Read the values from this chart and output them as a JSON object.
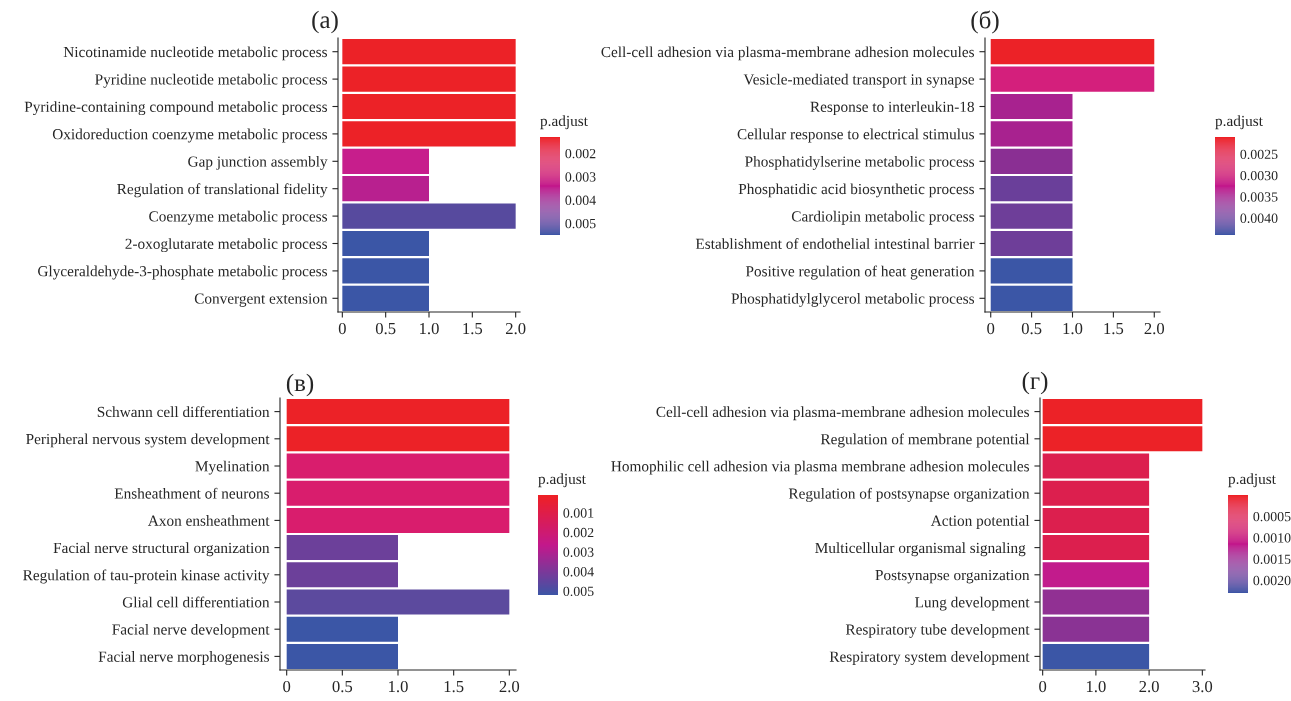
{
  "chart_data": [
    {
      "type": "bar",
      "orientation": "horizontal",
      "title": "(a)",
      "clabel": "p.adjust",
      "categories": [
        "Nicotinamide nucleotide metabolic process",
        "Pyridine nucleotide metabolic process",
        "Pyridine-containing compound metabolic process",
        "Oxidoreduction coenzyme metabolic process",
        "Gap junction assembly",
        "Regulation of translational fidelity",
        "Coenzyme metabolic process",
        "2-oxoglutarate metabolic process",
        "Glyceraldehyde-3-phosphate metabolic process",
        "Convergent extension"
      ],
      "values": [
        2,
        2,
        2,
        2,
        1,
        1,
        2,
        1,
        1,
        1
      ],
      "colors": [
        "#ec2227",
        "#ec2227",
        "#ec2227",
        "#ec2227",
        "#c71e8c",
        "#b8208f",
        "#574a9e",
        "#3b56a6",
        "#3b56a6",
        "#3b56a6"
      ],
      "xlim": [
        -0.05,
        2.05
      ],
      "xticks": [
        0,
        {
          "value": 0.5,
          "label": "0.5"
        },
        {
          "value": 1,
          "label": "1.0"
        },
        {
          "value": 1.5,
          "label": "1.5"
        },
        {
          "value": 2,
          "label": "2.0"
        }
      ],
      "clim": [
        0.0055,
        0.0013
      ],
      "cticks": [
        {
          "value": 0.002,
          "label": "0.002"
        },
        {
          "value": 0.003,
          "label": "0.003"
        },
        {
          "value": 0.004,
          "label": "0.004"
        },
        {
          "value": 0.005,
          "label": "0.005"
        }
      ],
      "grid": false,
      "legend": false
    },
    {
      "type": "bar",
      "orientation": "horizontal",
      "title": "(б)",
      "clabel": "p.adjust",
      "categories": [
        "Cell-cell adhesion via plasma-membrane adhesion molecules",
        "Vesicle-mediated transport in synapse",
        "Response to interleukin-18",
        "Cellular response to electrical stimulus",
        "Phosphatidylserine metabolic process",
        "Phosphatidic acid biosynthetic process",
        "Cardiolipin metabolic process",
        "Establishment of endothelial intestinal barrier",
        "Positive regulation of heat generation",
        "Phosphatidylglycerol metabolic process"
      ],
      "values": [
        2,
        2,
        1,
        1,
        1,
        1,
        1,
        1,
        1,
        1
      ],
      "colors": [
        "#ec2227",
        "#d41f7c",
        "#a8228f",
        "#a8228f",
        "#8a2f93",
        "#6a3f9a",
        "#6e3e99",
        "#6e3e99",
        "#3b56a6",
        "#3b56a6"
      ],
      "xlim": [
        -0.07,
        2.07
      ],
      "xticks": [
        0,
        {
          "value": 0.5,
          "label": "0.5"
        },
        {
          "value": 1,
          "label": "1.0"
        },
        {
          "value": 1.5,
          "label": "1.5"
        },
        {
          "value": 2,
          "label": "2.0"
        }
      ],
      "clim": [
        0.0044,
        0.0021
      ],
      "cticks": [
        {
          "value": 0.0025,
          "label": "0.0025"
        },
        {
          "value": 0.003,
          "label": "0.0030"
        },
        {
          "value": 0.0035,
          "label": "0.0035"
        },
        {
          "value": 0.004,
          "label": "0.0040"
        }
      ],
      "grid": false,
      "legend": false
    },
    {
      "type": "bar",
      "orientation": "horizontal",
      "title": "(в)",
      "clabel": "p.adjust",
      "categories": [
        "Schwann cell differentiation",
        "Peripheral nervous system development",
        "Myelination",
        "Ensheathment of neurons",
        "Axon ensheathment",
        "Facial nerve structural organization",
        "Regulation of tau-protein kinase activity",
        "Glial cell differentiation",
        "Facial nerve development",
        "Facial nerve morphogenesis"
      ],
      "values": [
        2,
        2,
        2,
        2,
        2,
        1,
        1,
        2,
        1,
        1
      ],
      "colors": [
        "#ec2227",
        "#ec2227",
        "#d91d6d",
        "#d91d6d",
        "#d91d6d",
        "#6c409a",
        "#6c409a",
        "#5c4a9e",
        "#3b56a6",
        "#3b56a6"
      ],
      "xlim": [
        -0.06,
        2.06
      ],
      "xticks": [
        0,
        {
          "value": 0.5,
          "label": "0.5"
        },
        {
          "value": 1,
          "label": "1.0"
        },
        {
          "value": 1.5,
          "label": "1.5"
        },
        {
          "value": 2,
          "label": "2.0"
        }
      ],
      "clim": [
        0.0052,
        0.0001
      ],
      "cticks": [
        {
          "value": 0.001,
          "label": "0.001"
        },
        {
          "value": 0.002,
          "label": "0.002"
        },
        {
          "value": 0.003,
          "label": "0.003"
        },
        {
          "value": 0.004,
          "label": "0.004"
        },
        {
          "value": 0.005,
          "label": "0.005"
        }
      ],
      "grid": false,
      "legend": false
    },
    {
      "type": "bar",
      "orientation": "horizontal",
      "title": "(г)",
      "clabel": "p.adjust",
      "categories": [
        "Cell-cell adhesion via plasma-membrane adhesion molecules",
        "Regulation of membrane potential",
        "Homophilic cell adhesion via plasma membrane adhesion molecules",
        "Regulation of postsynapse organization",
        "Action potential",
        "Multicellular organismal signaling ",
        "Postsynapse organization",
        "Lung development",
        "Respiratory tube development",
        "Respiratory system development"
      ],
      "values": [
        3,
        3,
        2,
        2,
        2,
        2,
        2,
        2,
        2,
        2
      ],
      "colors": [
        "#ec2227",
        "#ec2227",
        "#dc1f4e",
        "#dc1f4e",
        "#dc1f4e",
        "#dc1f4e",
        "#c21b8c",
        "#913093",
        "#8a3394",
        "#3b56a6"
      ],
      "xlim": [
        -0.05,
        3.05
      ],
      "xticks": [
        0,
        {
          "value": 1,
          "label": "1.0"
        },
        {
          "value": 2,
          "label": "2.0"
        },
        {
          "value": 3,
          "label": "3.0"
        }
      ],
      "clim": [
        0.0023,
        0.0
      ],
      "cticks": [
        {
          "value": 0.0005,
          "label": "0.0005"
        },
        {
          "value": 0.001,
          "label": "0.0010"
        },
        {
          "value": 0.0015,
          "label": "0.0015"
        },
        {
          "value": 0.002,
          "label": "0.0020"
        }
      ],
      "grid": false,
      "legend": false
    }
  ]
}
